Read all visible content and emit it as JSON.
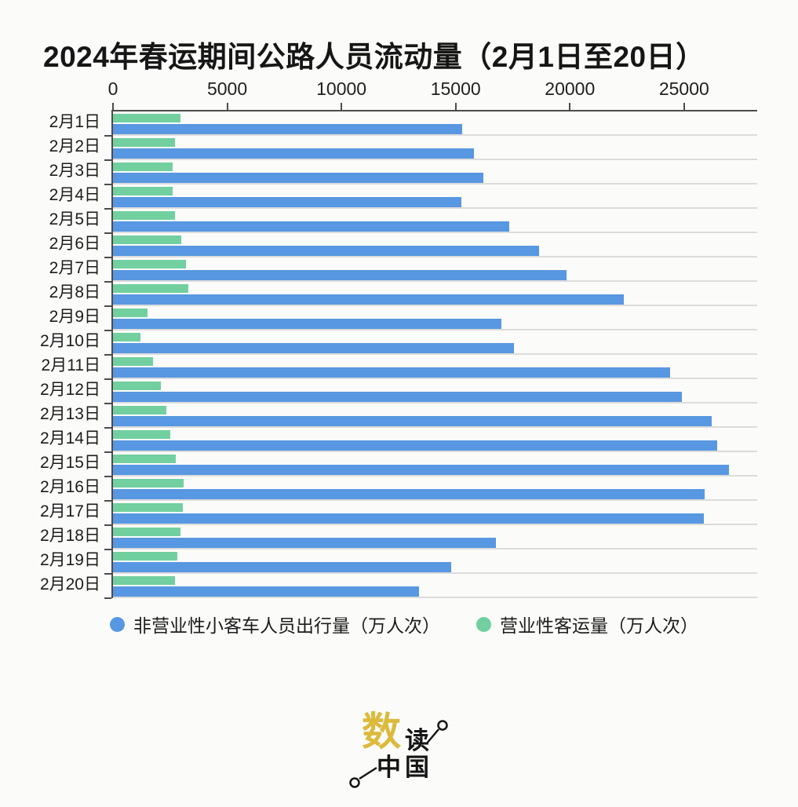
{
  "title": "2024年春运期间公路人员流动量（2月1日至20日）",
  "colors": {
    "blue": "#5897e1",
    "green": "#72cfa0",
    "grid": "#dcdcdc",
    "axis": "#4c4c4c",
    "background": "#fbfbf9",
    "text": "#1c1c1c",
    "logo_gold": "#dcba3c",
    "logo_black": "#151515"
  },
  "chart_data": {
    "type": "bar",
    "orientation": "horizontal",
    "title": "2024年春运期间公路人员流动量（2月1日至20日）",
    "unit": "万人次",
    "categories": [
      "2月1日",
      "2月2日",
      "2月3日",
      "2月4日",
      "2月5日",
      "2月6日",
      "2月7日",
      "2月8日",
      "2月9日",
      "2月10日",
      "2月11日",
      "2月12日",
      "2月13日",
      "2月14日",
      "2月15日",
      "2月16日",
      "2月17日",
      "2月18日",
      "2月19日",
      "2月20日"
    ],
    "series": [
      {
        "name": "非营业性小客车人员出行量（万人次）",
        "color_key": "blue",
        "values": [
          15300,
          15800,
          16200,
          15250,
          17350,
          18650,
          19850,
          22350,
          17000,
          17550,
          24400,
          24900,
          26200,
          26450,
          26950,
          25900,
          25850,
          16750,
          14800,
          13400
        ]
      },
      {
        "name": "营业性客运量（万人次）",
        "color_key": "green",
        "values": [
          2950,
          2700,
          2600,
          2600,
          2700,
          3000,
          3200,
          3300,
          1500,
          1200,
          1750,
          2100,
          2350,
          2500,
          2750,
          3100,
          3050,
          2950,
          2800,
          2700
        ]
      }
    ],
    "xticks": [
      0,
      5000,
      10000,
      15000,
      20000,
      25000
    ],
    "xtick_labels": [
      "0",
      "5000",
      "10000",
      "15000",
      "20000",
      "25000"
    ],
    "xlim": [
      0,
      28200
    ],
    "grid": "row separator lines, light gray",
    "legend_position": "bottom",
    "bar_row_order_top_to_bottom": [
      "营业性客运量（万人次）",
      "非营业性小客车人员出行量（万人次）"
    ]
  },
  "legend": {
    "items": [
      {
        "label": "非营业性小客车人员出行量（万人次）",
        "color_key": "blue"
      },
      {
        "label": "营业性客运量（万人次）",
        "color_key": "green"
      }
    ]
  },
  "logo": {
    "char_large": "数",
    "char_small": "读",
    "chars_bottom": "中国"
  }
}
